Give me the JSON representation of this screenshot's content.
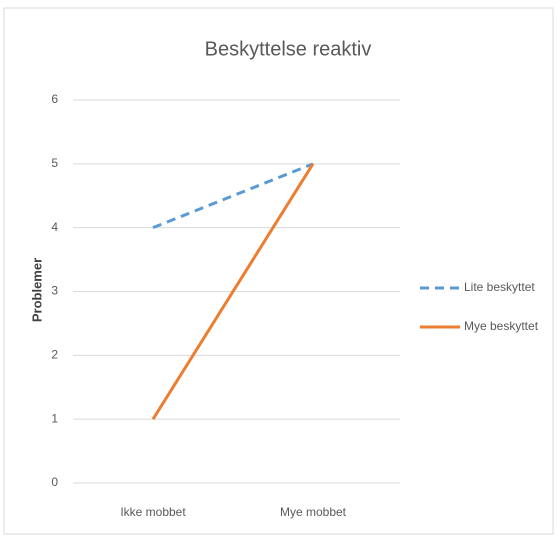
{
  "chart_data": {
    "type": "line",
    "title": "Beskyttelse reaktiv",
    "ylabel": "Problemer",
    "categories": [
      "Ikke mobbet",
      "Mye mobbet"
    ],
    "series": [
      {
        "name": "Lite beskyttet",
        "color": "#5b9bd5",
        "dashed": true,
        "values": [
          4,
          5
        ]
      },
      {
        "name": "Mye beskyttet",
        "color": "#ed7d31",
        "dashed": false,
        "values": [
          1,
          5
        ]
      }
    ],
    "ylim": [
      0,
      6
    ],
    "yticks": [
      0,
      1,
      2,
      3,
      4,
      5,
      6
    ],
    "grid": true,
    "legend": "right"
  }
}
